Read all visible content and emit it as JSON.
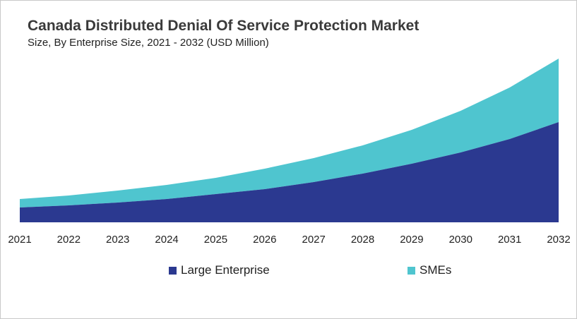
{
  "chart_data": {
    "type": "area",
    "stacked": true,
    "title": "Canada Distributed Denial Of Service Protection Market",
    "subtitle": "Size, By Enterprise Size, 2021 - 2032 (USD Million)",
    "xlabel": "",
    "ylabel": "",
    "categories": [
      "2021",
      "2022",
      "2023",
      "2024",
      "2025",
      "2026",
      "2027",
      "2028",
      "2029",
      "2030",
      "2031",
      "2032"
    ],
    "series": [
      {
        "name": "Large Enterprise",
        "color": "#2b3990",
        "values": [
          21,
          24,
          28,
          33,
          40,
          47,
          57,
          69,
          83,
          99,
          118,
          142
        ]
      },
      {
        "name": "SMEs",
        "color": "#4fc5cf",
        "values": [
          12,
          14,
          17,
          20,
          23,
          29,
          34,
          40,
          48,
          59,
          73,
          90
        ]
      }
    ],
    "ylim": [
      0,
      240
    ],
    "grid": false,
    "legend_position": "bottom"
  }
}
